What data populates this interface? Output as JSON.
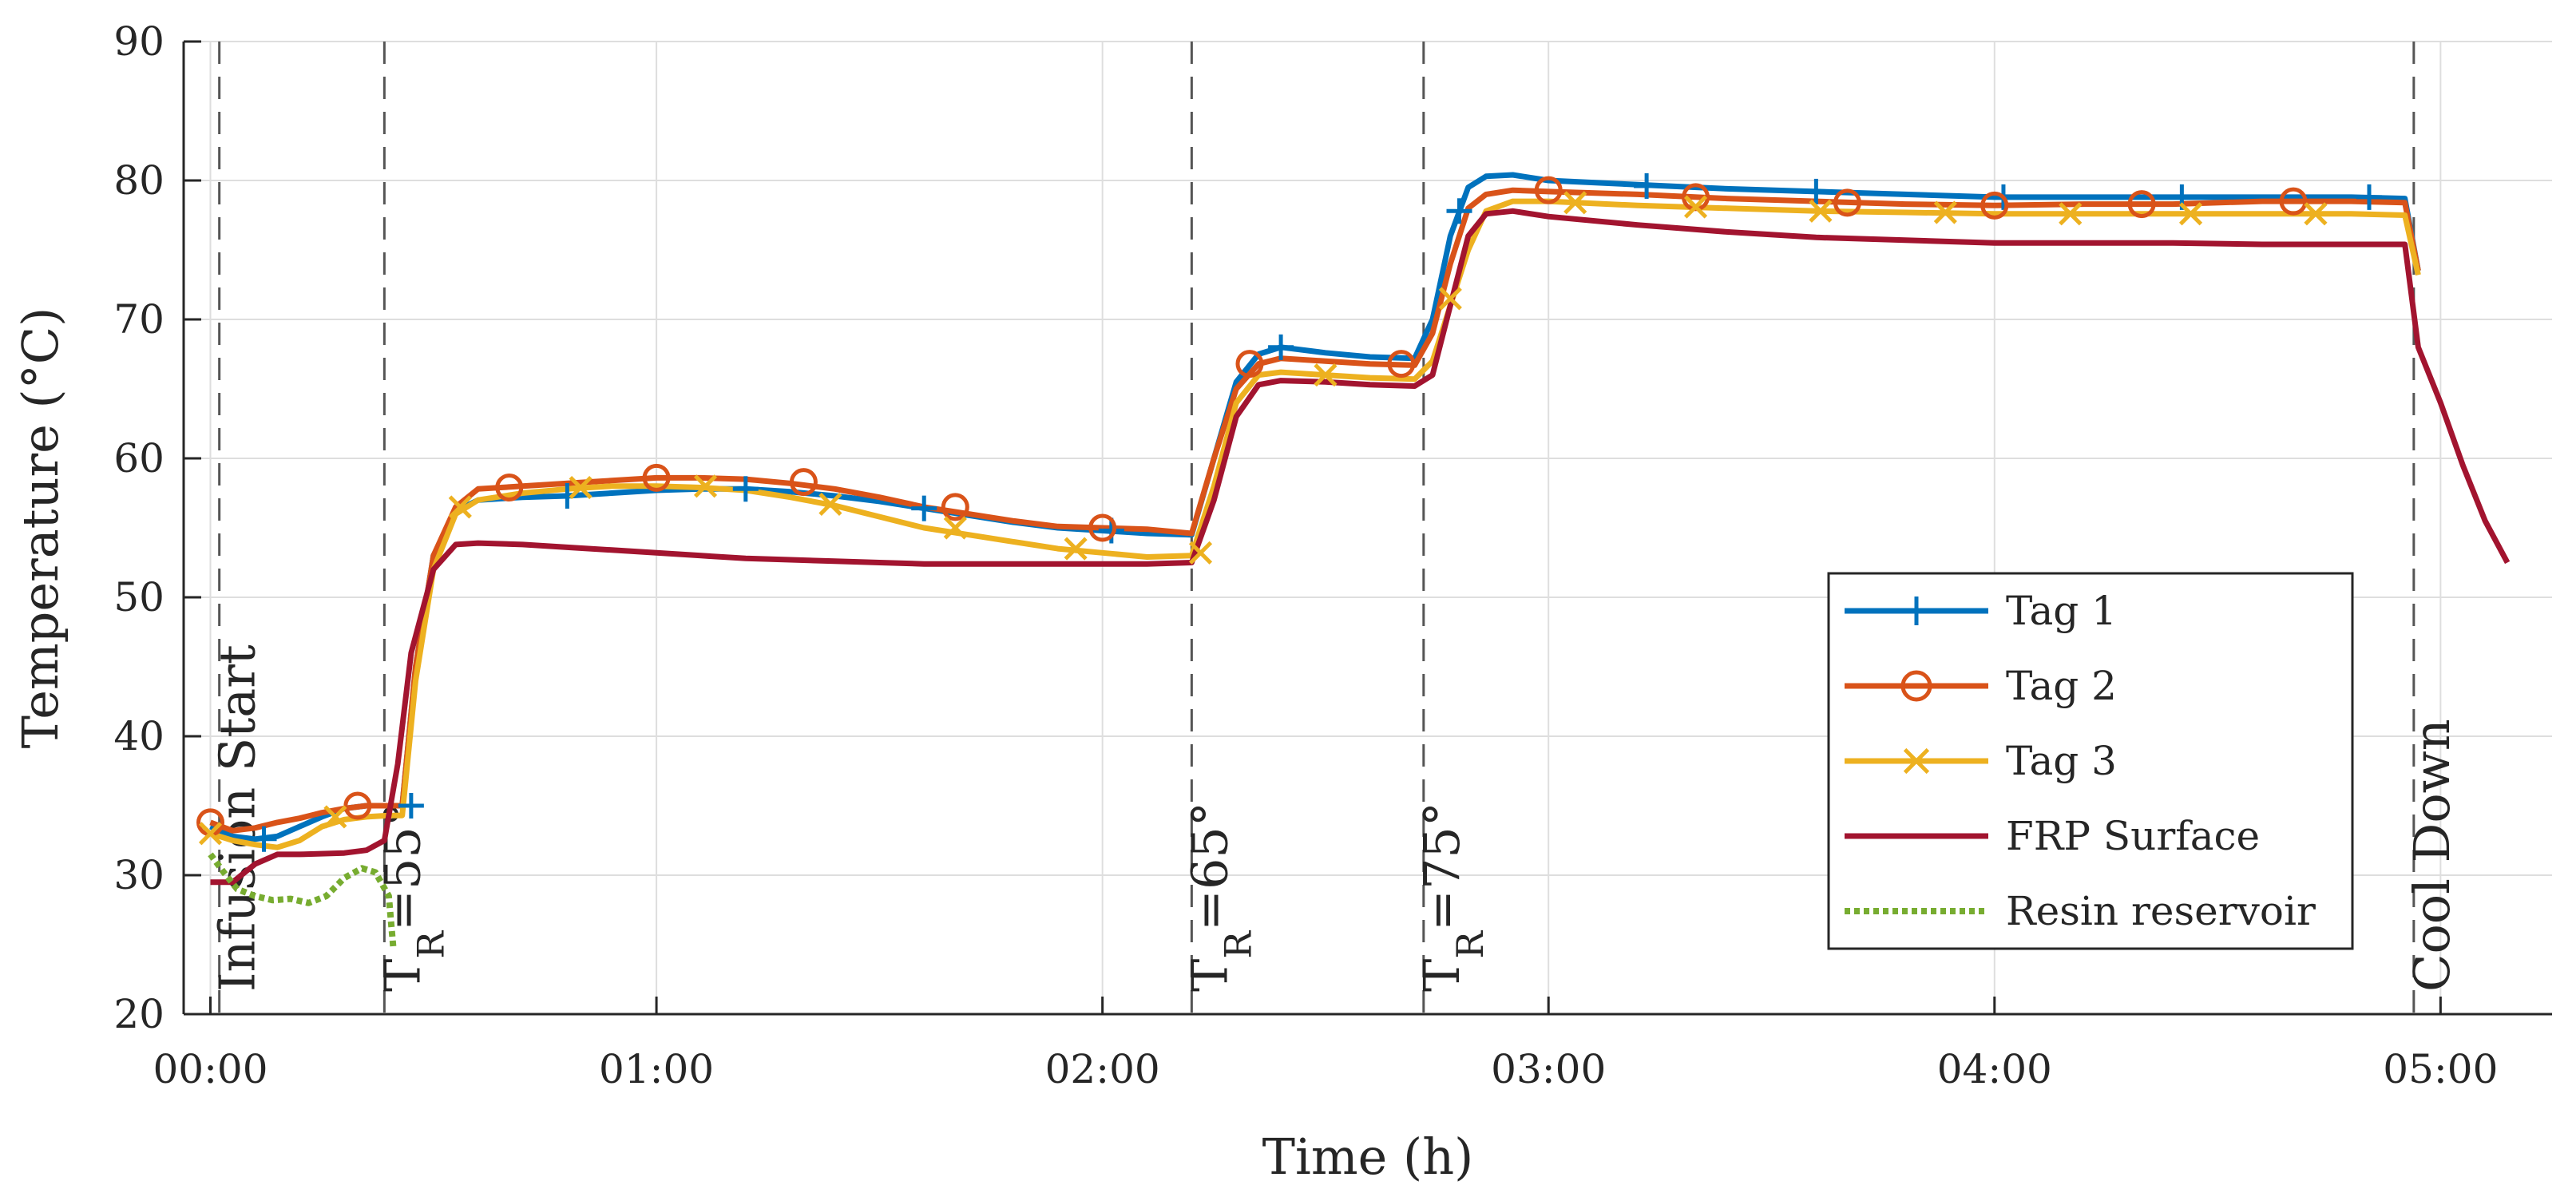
{
  "chart_data": {
    "type": "line",
    "title": "",
    "xlabel": "Time (h)",
    "ylabel": "Temperature (°C)",
    "xlim": [
      -0.06,
      5.25
    ],
    "ylim": [
      20,
      90
    ],
    "grid": true,
    "legend_position": "lower-right",
    "xticks": [
      {
        "value": 0,
        "label": "00:00"
      },
      {
        "value": 1,
        "label": "01:00"
      },
      {
        "value": 2,
        "label": "02:00"
      },
      {
        "value": 3,
        "label": "03:00"
      },
      {
        "value": 4,
        "label": "04:00"
      },
      {
        "value": 5,
        "label": "05:00"
      }
    ],
    "yticks": [
      {
        "value": 20,
        "label": "20"
      },
      {
        "value": 30,
        "label": "30"
      },
      {
        "value": 40,
        "label": "40"
      },
      {
        "value": 50,
        "label": "50"
      },
      {
        "value": 60,
        "label": "60"
      },
      {
        "value": 70,
        "label": "70"
      },
      {
        "value": 80,
        "label": "80"
      },
      {
        "value": 90,
        "label": "90"
      }
    ],
    "vlines": [
      {
        "x": 0.02,
        "text": "Infusion Start"
      },
      {
        "x": 0.39,
        "prefix": "T",
        "sub": "R",
        "suffix": "=55°"
      },
      {
        "x": 2.2,
        "prefix": "T",
        "sub": "R",
        "suffix": "=65°"
      },
      {
        "x": 2.72,
        "prefix": "T",
        "sub": "R",
        "suffix": "=75°"
      },
      {
        "x": 4.94,
        "text": "Cool Down"
      }
    ],
    "series": [
      {
        "name": "Tag 1",
        "color": "#0072BD",
        "marker": "plus",
        "dash": "",
        "x": [
          0,
          0.05,
          0.1,
          0.15,
          0.2,
          0.25,
          0.3,
          0.35,
          0.4,
          0.43,
          0.46,
          0.5,
          0.55,
          0.6,
          0.7,
          0.8,
          0.9,
          1.0,
          1.1,
          1.2,
          1.3,
          1.4,
          1.5,
          1.6,
          1.7,
          1.8,
          1.9,
          2.0,
          2.1,
          2.2,
          2.25,
          2.3,
          2.35,
          2.4,
          2.5,
          2.6,
          2.7,
          2.74,
          2.78,
          2.82,
          2.86,
          2.92,
          3.0,
          3.2,
          3.4,
          3.6,
          3.8,
          4.0,
          4.2,
          4.4,
          4.6,
          4.8,
          4.92,
          4.95
        ],
        "y": [
          33.5,
          32.8,
          32.6,
          32.8,
          33.5,
          34.2,
          34.8,
          35.0,
          35.0,
          35.0,
          45,
          53,
          56.2,
          57,
          57.2,
          57.3,
          57.5,
          57.7,
          57.8,
          57.8,
          57.6,
          57.3,
          56.9,
          56.4,
          55.9,
          55.4,
          55.0,
          54.8,
          54.6,
          54.5,
          60,
          65.5,
          67.5,
          68,
          67.6,
          67.3,
          67.2,
          70,
          76,
          79.5,
          80.3,
          80.4,
          80.0,
          79.7,
          79.4,
          79.2,
          79.0,
          78.8,
          78.8,
          78.8,
          78.8,
          78.8,
          78.7,
          73.5
        ],
        "markers_x": [
          0.12,
          0.45,
          0.8,
          1.2,
          1.6,
          2.02,
          2.4,
          2.8,
          3.22,
          3.6,
          4.02,
          4.42,
          4.84
        ],
        "markers_y": [
          32.6,
          35.0,
          57.3,
          57.8,
          56.4,
          54.8,
          68.0,
          77.8,
          79.6,
          79.2,
          78.8,
          78.8,
          78.8
        ]
      },
      {
        "name": "Tag 2",
        "color": "#D95319",
        "marker": "circle",
        "dash": "",
        "x": [
          0,
          0.05,
          0.1,
          0.15,
          0.2,
          0.25,
          0.3,
          0.35,
          0.4,
          0.43,
          0.46,
          0.5,
          0.55,
          0.6,
          0.7,
          0.8,
          0.9,
          1.0,
          1.1,
          1.2,
          1.3,
          1.4,
          1.5,
          1.6,
          1.7,
          1.8,
          1.9,
          2.0,
          2.1,
          2.2,
          2.25,
          2.3,
          2.35,
          2.4,
          2.5,
          2.6,
          2.7,
          2.74,
          2.78,
          2.82,
          2.86,
          2.92,
          3.0,
          3.2,
          3.4,
          3.6,
          3.8,
          4.0,
          4.2,
          4.4,
          4.6,
          4.8,
          4.92,
          4.95
        ],
        "y": [
          33.8,
          33.2,
          33.4,
          33.8,
          34.1,
          34.5,
          34.8,
          35.0,
          35.0,
          35.0,
          45,
          53,
          56.5,
          57.8,
          58.0,
          58.2,
          58.4,
          58.6,
          58.6,
          58.5,
          58.2,
          57.8,
          57.2,
          56.5,
          56.0,
          55.5,
          55.1,
          55.0,
          54.9,
          54.6,
          60,
          65,
          66.8,
          67.2,
          67.0,
          66.8,
          66.7,
          69,
          74,
          78,
          79.0,
          79.3,
          79.2,
          79.0,
          78.7,
          78.5,
          78.3,
          78.2,
          78.3,
          78.3,
          78.5,
          78.5,
          78.4,
          73.5
        ],
        "markers_x": [
          0.0,
          0.33,
          0.67,
          1.0,
          1.33,
          1.67,
          2.0,
          2.33,
          2.67,
          3.0,
          3.33,
          3.67,
          4.0,
          4.33,
          4.67
        ],
        "markers_y": [
          33.8,
          35.0,
          57.9,
          58.6,
          58.3,
          56.5,
          55.0,
          66.8,
          66.8,
          79.3,
          78.8,
          78.4,
          78.2,
          78.3,
          78.5
        ]
      },
      {
        "name": "Tag 3",
        "color": "#EDB120",
        "marker": "x",
        "dash": "",
        "x": [
          0,
          0.05,
          0.1,
          0.15,
          0.2,
          0.25,
          0.3,
          0.35,
          0.4,
          0.43,
          0.46,
          0.5,
          0.55,
          0.6,
          0.7,
          0.8,
          0.9,
          1.0,
          1.1,
          1.2,
          1.3,
          1.4,
          1.5,
          1.6,
          1.7,
          1.8,
          1.9,
          2.0,
          2.1,
          2.2,
          2.25,
          2.3,
          2.35,
          2.4,
          2.5,
          2.6,
          2.7,
          2.74,
          2.78,
          2.82,
          2.86,
          2.92,
          3.0,
          3.2,
          3.4,
          3.6,
          3.8,
          4.0,
          4.2,
          4.4,
          4.6,
          4.8,
          4.92,
          4.95
        ],
        "y": [
          33.0,
          32.5,
          32.2,
          32.0,
          32.5,
          33.5,
          34.0,
          34.2,
          34.3,
          34.3,
          44,
          52,
          56.0,
          57.0,
          57.5,
          57.8,
          58.0,
          58.0,
          57.9,
          57.7,
          57.2,
          56.6,
          55.8,
          55.0,
          54.5,
          54.0,
          53.5,
          53.2,
          52.9,
          53.0,
          58,
          64,
          66.0,
          66.2,
          66.0,
          65.8,
          65.7,
          67,
          71,
          75,
          77.8,
          78.5,
          78.5,
          78.2,
          78.0,
          77.8,
          77.7,
          77.6,
          77.6,
          77.6,
          77.6,
          77.6,
          77.5,
          73.2
        ],
        "markers_x": [
          0.0,
          0.28,
          0.56,
          0.83,
          1.11,
          1.39,
          1.67,
          1.94,
          2.22,
          2.5,
          2.78,
          3.06,
          3.33,
          3.61,
          3.89,
          4.17,
          4.44,
          4.72
        ],
        "markers_y": [
          33.0,
          34.2,
          56.5,
          57.9,
          58.0,
          56.7,
          55.0,
          53.5,
          53.2,
          66.0,
          71.5,
          78.4,
          78.1,
          77.8,
          77.7,
          77.6,
          77.6,
          77.6
        ]
      },
      {
        "name": "FRP Surface",
        "color": "#A2142F",
        "marker": "none",
        "dash": "",
        "x": [
          0,
          0.05,
          0.1,
          0.15,
          0.2,
          0.3,
          0.35,
          0.39,
          0.42,
          0.45,
          0.5,
          0.55,
          0.6,
          0.7,
          0.8,
          0.9,
          1.0,
          1.1,
          1.2,
          1.3,
          1.4,
          1.5,
          1.6,
          1.7,
          1.8,
          1.9,
          2.0,
          2.1,
          2.2,
          2.25,
          2.3,
          2.35,
          2.4,
          2.5,
          2.6,
          2.7,
          2.74,
          2.78,
          2.82,
          2.86,
          2.92,
          3.0,
          3.2,
          3.4,
          3.6,
          3.8,
          4.0,
          4.2,
          4.4,
          4.6,
          4.8,
          4.92,
          4.95,
          5.0,
          5.05,
          5.1,
          5.15
        ],
        "y": [
          29.5,
          29.5,
          30.8,
          31.5,
          31.5,
          31.6,
          31.8,
          32.5,
          38,
          46,
          52,
          53.8,
          53.9,
          53.8,
          53.6,
          53.4,
          53.2,
          53.0,
          52.8,
          52.7,
          52.6,
          52.5,
          52.4,
          52.4,
          52.4,
          52.4,
          52.4,
          52.4,
          52.5,
          57,
          63,
          65.3,
          65.6,
          65.5,
          65.3,
          65.2,
          66,
          71,
          76,
          77.6,
          77.8,
          77.4,
          76.8,
          76.3,
          75.9,
          75.7,
          75.5,
          75.5,
          75.5,
          75.4,
          75.4,
          75.4,
          68,
          64,
          59.5,
          55.5,
          52.5
        ],
        "markers_x": [],
        "markers_y": []
      },
      {
        "name": "Resin reservoir",
        "color": "#77AC30",
        "marker": "none",
        "dash": "dotted",
        "x": [
          0,
          0.03,
          0.06,
          0.1,
          0.14,
          0.18,
          0.22,
          0.26,
          0.3,
          0.34,
          0.37,
          0.4,
          0.41
        ],
        "y": [
          31.5,
          30.2,
          29.0,
          28.5,
          28.2,
          28.3,
          28.0,
          28.5,
          29.8,
          30.5,
          30.2,
          28.5,
          24.8
        ],
        "markers_x": [],
        "markers_y": []
      }
    ]
  }
}
